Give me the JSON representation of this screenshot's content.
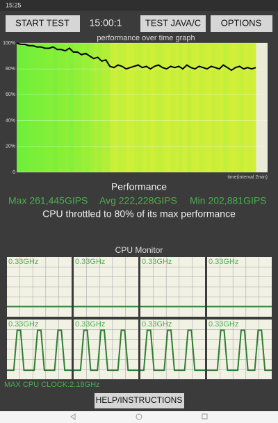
{
  "status_bar": {
    "time": "15:25"
  },
  "toolbar": {
    "start": "START TEST",
    "timer": "15:00:1",
    "test_java": "TEST JAVA/C",
    "options": "OPTIONS"
  },
  "chart_data": {
    "type": "line",
    "title": "performance over time graph",
    "x_label": "time(interval 2min)",
    "ylim": [
      0,
      100
    ],
    "yticks": [
      0,
      {
        "value": 20,
        "label": "20%"
      },
      {
        "value": 40,
        "label": "40%"
      },
      {
        "value": 60,
        "label": "60%"
      },
      {
        "value": 80,
        "label": "80%"
      },
      {
        "value": 100,
        "label": "100%"
      }
    ],
    "color": "#000000",
    "values": [
      100,
      99,
      99,
      98,
      98,
      97,
      97,
      96,
      96,
      97,
      95,
      95,
      94,
      96,
      93,
      93,
      91,
      92,
      90,
      88,
      89,
      86,
      87,
      82,
      81,
      83,
      82,
      80,
      81,
      82,
      83,
      81,
      82,
      80,
      82,
      83,
      81,
      80,
      82,
      81,
      82,
      80,
      83,
      81,
      80,
      82,
      81,
      80,
      82,
      81,
      80,
      83,
      81,
      79,
      81,
      82,
      80,
      81,
      80,
      81
    ]
  },
  "performance": {
    "title": "Performance",
    "max": "Max 261,445GIPS",
    "avg": "Avg 222,228GIPS",
    "min": "Min 202,881GIPS",
    "summary": "CPU throttled to 80% of its max performance"
  },
  "cpu_monitor": {
    "title": "CPU Monitor",
    "cores": [
      {
        "label": "0.33GHz",
        "values": [
          17,
          17,
          17,
          17,
          17,
          17,
          17,
          17,
          17,
          17,
          17,
          17,
          17,
          17,
          17,
          17,
          17,
          17,
          17,
          17
        ]
      },
      {
        "label": "0.33GHz",
        "values": [
          17,
          17,
          17,
          17,
          17,
          17,
          17,
          17,
          17,
          17,
          17,
          17,
          17,
          17,
          17,
          17,
          17,
          17,
          17,
          17
        ]
      },
      {
        "label": "0.33GHz",
        "values": [
          17,
          17,
          17,
          17,
          17,
          17,
          17,
          17,
          17,
          17,
          17,
          17,
          17,
          17,
          17,
          17,
          17,
          17,
          17,
          17
        ]
      },
      {
        "label": "0.33GHz",
        "values": [
          17,
          17,
          17,
          17,
          17,
          17,
          17,
          17,
          17,
          17,
          17,
          17,
          17,
          17,
          17,
          17,
          17,
          17,
          17,
          17
        ]
      },
      {
        "label": "0.33GHz",
        "values": [
          15,
          15,
          15,
          82,
          82,
          15,
          15,
          15,
          15,
          82,
          82,
          15,
          15,
          15,
          15,
          82,
          82,
          15,
          15,
          15
        ]
      },
      {
        "label": "0.33GHz",
        "values": [
          15,
          15,
          15,
          82,
          82,
          15,
          15,
          15,
          82,
          82,
          15,
          15,
          15,
          15,
          82,
          82,
          15,
          15,
          15,
          15
        ]
      },
      {
        "label": "0.33GHz",
        "values": [
          15,
          15,
          82,
          82,
          15,
          15,
          15,
          15,
          82,
          82,
          15,
          15,
          15,
          15,
          82,
          82,
          15,
          15,
          15,
          15
        ]
      },
      {
        "label": "0.33GHz",
        "values": [
          15,
          15,
          15,
          15,
          82,
          82,
          15,
          15,
          15,
          15,
          82,
          82,
          15,
          15,
          15,
          82,
          82,
          15,
          15,
          15
        ]
      }
    ]
  },
  "max_clock": "MAX CPU CLOCK:2.18GHz",
  "help": "HELP/INSTRUCTIONS"
}
